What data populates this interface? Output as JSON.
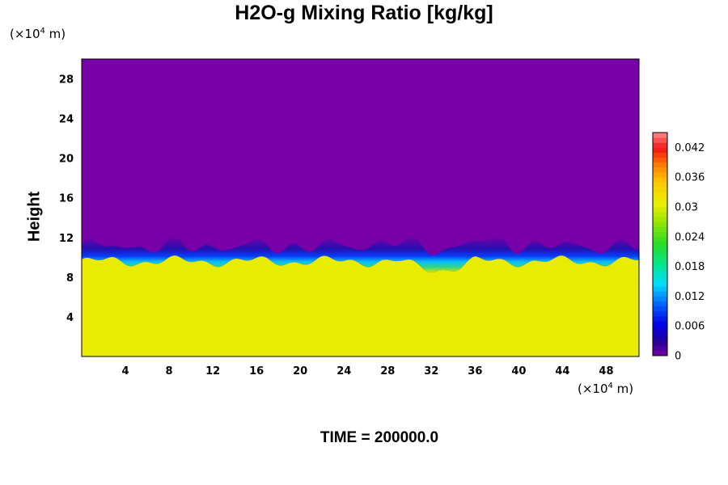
{
  "chart_data": {
    "type": "heatmap",
    "title": "H2O-g Mixing Ratio [kg/kg]",
    "ylabel": "Height",
    "xlabel": "",
    "x_unit": {
      "prefix": "(×10",
      "exp": "4",
      "suffix": " m)"
    },
    "y_unit": {
      "prefix": "(×10",
      "exp": "4",
      "suffix": " m)"
    },
    "xlim": [
      0,
      51
    ],
    "ylim": [
      0,
      30
    ],
    "x_ticks": [
      "4",
      "8",
      "12",
      "16",
      "20",
      "24",
      "28",
      "32",
      "36",
      "40",
      "44",
      "48"
    ],
    "y_ticks": [
      "4",
      "8",
      "12",
      "16",
      "20",
      "24",
      "28"
    ],
    "colorbar": {
      "range": [
        0,
        0.045
      ],
      "ticks": [
        "0",
        "0.006",
        "0.012",
        "0.018",
        "0.024",
        "0.03",
        "0.036",
        "0.042"
      ]
    },
    "field_summary": {
      "upper_region_value": 0,
      "lower_region_value": 0.031,
      "boundary_height_approx": 9.6
    },
    "footer": "TIME = 200000.0"
  }
}
